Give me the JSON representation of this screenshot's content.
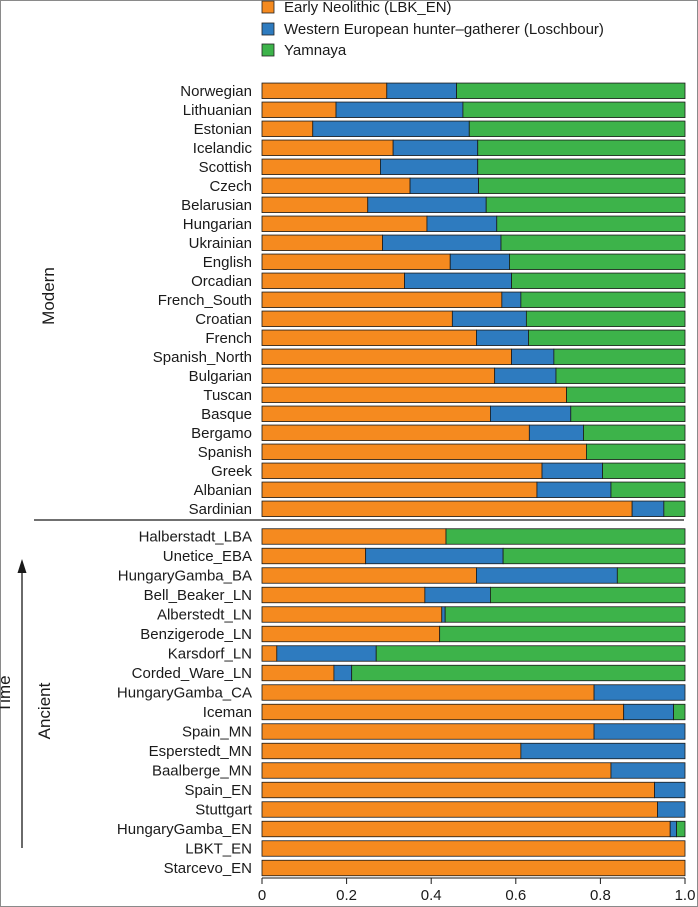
{
  "chart_data": {
    "type": "bar",
    "orientation": "horizontal",
    "stacked": true,
    "xlim": [
      0,
      1
    ],
    "xticks": [
      "0",
      "0.2",
      "0.4",
      "0.6",
      "0.8",
      "1.0"
    ],
    "xtick_values": [
      0,
      0.2,
      0.4,
      0.6,
      0.8,
      1.0
    ],
    "axis_label": "Time",
    "legend_position": "top",
    "series": [
      {
        "name": "Early Neolithic (LBK_EN)",
        "color": "#f58a1f"
      },
      {
        "name": "Western European hunter–gatherer (Loschbour)",
        "color": "#2e7bbf"
      },
      {
        "name": "Yamnaya",
        "color": "#3db34a"
      }
    ],
    "groups": [
      {
        "name": "Modern",
        "rows": [
          {
            "label": "Norwegian",
            "values": [
              0.295,
              0.165,
              0.54
            ]
          },
          {
            "label": "Lithuanian",
            "values": [
              0.175,
              0.3,
              0.525
            ]
          },
          {
            "label": "Estonian",
            "values": [
              0.12,
              0.37,
              0.51
            ]
          },
          {
            "label": "Icelandic",
            "values": [
              0.31,
              0.2,
              0.49
            ]
          },
          {
            "label": "Scottish",
            "values": [
              0.28,
              0.23,
              0.49
            ]
          },
          {
            "label": "Czech",
            "values": [
              0.35,
              0.162,
              0.488
            ]
          },
          {
            "label": "Belarusian",
            "values": [
              0.25,
              0.28,
              0.47
            ]
          },
          {
            "label": "Hungarian",
            "values": [
              0.39,
              0.165,
              0.445
            ]
          },
          {
            "label": "Ukrainian",
            "values": [
              0.285,
              0.28,
              0.435
            ]
          },
          {
            "label": "English",
            "values": [
              0.445,
              0.14,
              0.415
            ]
          },
          {
            "label": "Orcadian",
            "values": [
              0.337,
              0.253,
              0.41
            ]
          },
          {
            "label": "French_South",
            "values": [
              0.567,
              0.045,
              0.388
            ]
          },
          {
            "label": "Croatian",
            "values": [
              0.45,
              0.175,
              0.375
            ]
          },
          {
            "label": "French",
            "values": [
              0.507,
              0.123,
              0.37
            ]
          },
          {
            "label": "Spanish_North",
            "values": [
              0.59,
              0.1,
              0.31
            ]
          },
          {
            "label": "Bulgarian",
            "values": [
              0.55,
              0.145,
              0.305
            ]
          },
          {
            "label": "Tuscan",
            "values": [
              0.72,
              0.0,
              0.28
            ]
          },
          {
            "label": "Basque",
            "values": [
              0.54,
              0.19,
              0.27
            ]
          },
          {
            "label": "Bergamo",
            "values": [
              0.632,
              0.128,
              0.24
            ]
          },
          {
            "label": "Spanish",
            "values": [
              0.767,
              0.0,
              0.233
            ]
          },
          {
            "label": "Greek",
            "values": [
              0.662,
              0.143,
              0.195
            ]
          },
          {
            "label": "Albanian",
            "values": [
              0.65,
              0.175,
              0.175
            ]
          },
          {
            "label": "Sardinian",
            "values": [
              0.875,
              0.075,
              0.05
            ]
          }
        ]
      },
      {
        "name": "Ancient",
        "rows": [
          {
            "label": "Halberstadt_LBA",
            "values": [
              0.435,
              0.0,
              0.565
            ]
          },
          {
            "label": "Unetice_EBA",
            "values": [
              0.245,
              0.325,
              0.43
            ]
          },
          {
            "label": "HungaryGamba_BA",
            "values": [
              0.507,
              0.333,
              0.16
            ]
          },
          {
            "label": "Bell_Beaker_LN",
            "values": [
              0.385,
              0.155,
              0.46
            ]
          },
          {
            "label": "Alberstedt_LN",
            "values": [
              0.425,
              0.008,
              0.567
            ]
          },
          {
            "label": "Benzigerode_LN",
            "values": [
              0.42,
              0.0,
              0.58
            ]
          },
          {
            "label": "Karsdorf_LN",
            "values": [
              0.035,
              0.235,
              0.73
            ]
          },
          {
            "label": "Corded_Ware_LN",
            "values": [
              0.17,
              0.042,
              0.788
            ]
          },
          {
            "label": "HungaryGamba_CA",
            "values": [
              0.785,
              0.215,
              0.0
            ]
          },
          {
            "label": "Iceman",
            "values": [
              0.855,
              0.118,
              0.027
            ]
          },
          {
            "label": "Spain_MN",
            "values": [
              0.785,
              0.215,
              0.0
            ]
          },
          {
            "label": "Esperstedt_MN",
            "values": [
              0.612,
              0.388,
              0.0
            ]
          },
          {
            "label": "Baalberge_MN",
            "values": [
              0.825,
              0.175,
              0.0
            ]
          },
          {
            "label": "Spain_EN",
            "values": [
              0.928,
              0.072,
              0.0
            ]
          },
          {
            "label": "Stuttgart",
            "values": [
              0.935,
              0.065,
              0.0
            ]
          },
          {
            "label": "HungaryGamba_EN",
            "values": [
              0.965,
              0.015,
              0.02
            ]
          },
          {
            "label": "LBKT_EN",
            "values": [
              1.0,
              0.0,
              0.0
            ]
          },
          {
            "label": "Starcevo_EN",
            "values": [
              1.0,
              0.0,
              0.0
            ]
          }
        ]
      }
    ]
  }
}
